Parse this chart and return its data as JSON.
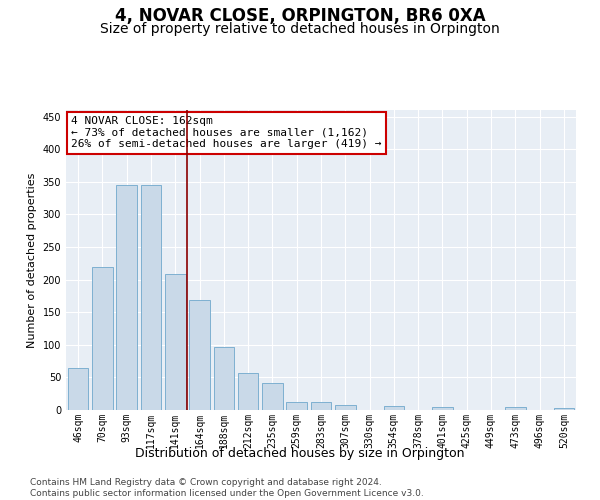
{
  "title": "4, NOVAR CLOSE, ORPINGTON, BR6 0XA",
  "subtitle": "Size of property relative to detached houses in Orpington",
  "xlabel": "Distribution of detached houses by size in Orpington",
  "ylabel": "Number of detached properties",
  "bar_labels": [
    "46sqm",
    "70sqm",
    "93sqm",
    "117sqm",
    "141sqm",
    "164sqm",
    "188sqm",
    "212sqm",
    "235sqm",
    "259sqm",
    "283sqm",
    "307sqm",
    "330sqm",
    "354sqm",
    "378sqm",
    "401sqm",
    "425sqm",
    "449sqm",
    "473sqm",
    "496sqm",
    "520sqm"
  ],
  "bar_values": [
    65,
    220,
    345,
    345,
    208,
    168,
    97,
    56,
    42,
    13,
    12,
    7,
    0,
    6,
    0,
    5,
    0,
    0,
    5,
    0,
    3
  ],
  "bar_color": "#c9d9e8",
  "bar_edge_color": "#6fa8cc",
  "vline_x": 4.5,
  "vline_color": "#8b0000",
  "annotation_line1": "4 NOVAR CLOSE: 162sqm",
  "annotation_line2": "← 73% of detached houses are smaller (1,162)",
  "annotation_line3": "26% of semi-detached houses are larger (419) →",
  "annotation_box_color": "#ffffff",
  "annotation_box_edge_color": "#cc0000",
  "ylim": [
    0,
    460
  ],
  "yticks": [
    0,
    50,
    100,
    150,
    200,
    250,
    300,
    350,
    400,
    450
  ],
  "background_color": "#e8eef5",
  "footer": "Contains HM Land Registry data © Crown copyright and database right 2024.\nContains public sector information licensed under the Open Government Licence v3.0.",
  "title_fontsize": 12,
  "subtitle_fontsize": 10,
  "xlabel_fontsize": 9,
  "ylabel_fontsize": 8,
  "tick_fontsize": 7,
  "annotation_fontsize": 8,
  "footer_fontsize": 6.5
}
